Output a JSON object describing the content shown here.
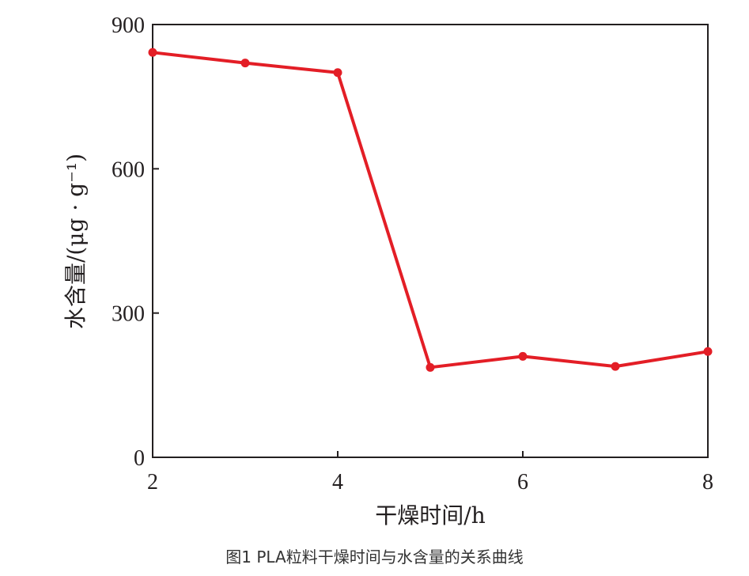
{
  "caption": "图1 PLA粒料干燥时间与水含量的关系曲线",
  "chart_data": {
    "type": "line",
    "title": "",
    "xlabel": "干燥时间/h",
    "ylabel": "水含量/(μg · g⁻¹)",
    "xlim": [
      2,
      8
    ],
    "ylim": [
      0,
      900
    ],
    "xticks": [
      2,
      4,
      6,
      8
    ],
    "yticks": [
      0,
      300,
      600,
      900
    ],
    "grid": false,
    "legend": "none",
    "series": [
      {
        "x": [
          2,
          3,
          4,
          5,
          6,
          7,
          8
        ],
        "y": [
          842,
          820,
          800,
          187,
          210,
          189,
          220
        ],
        "color": "#e31e26"
      }
    ]
  }
}
